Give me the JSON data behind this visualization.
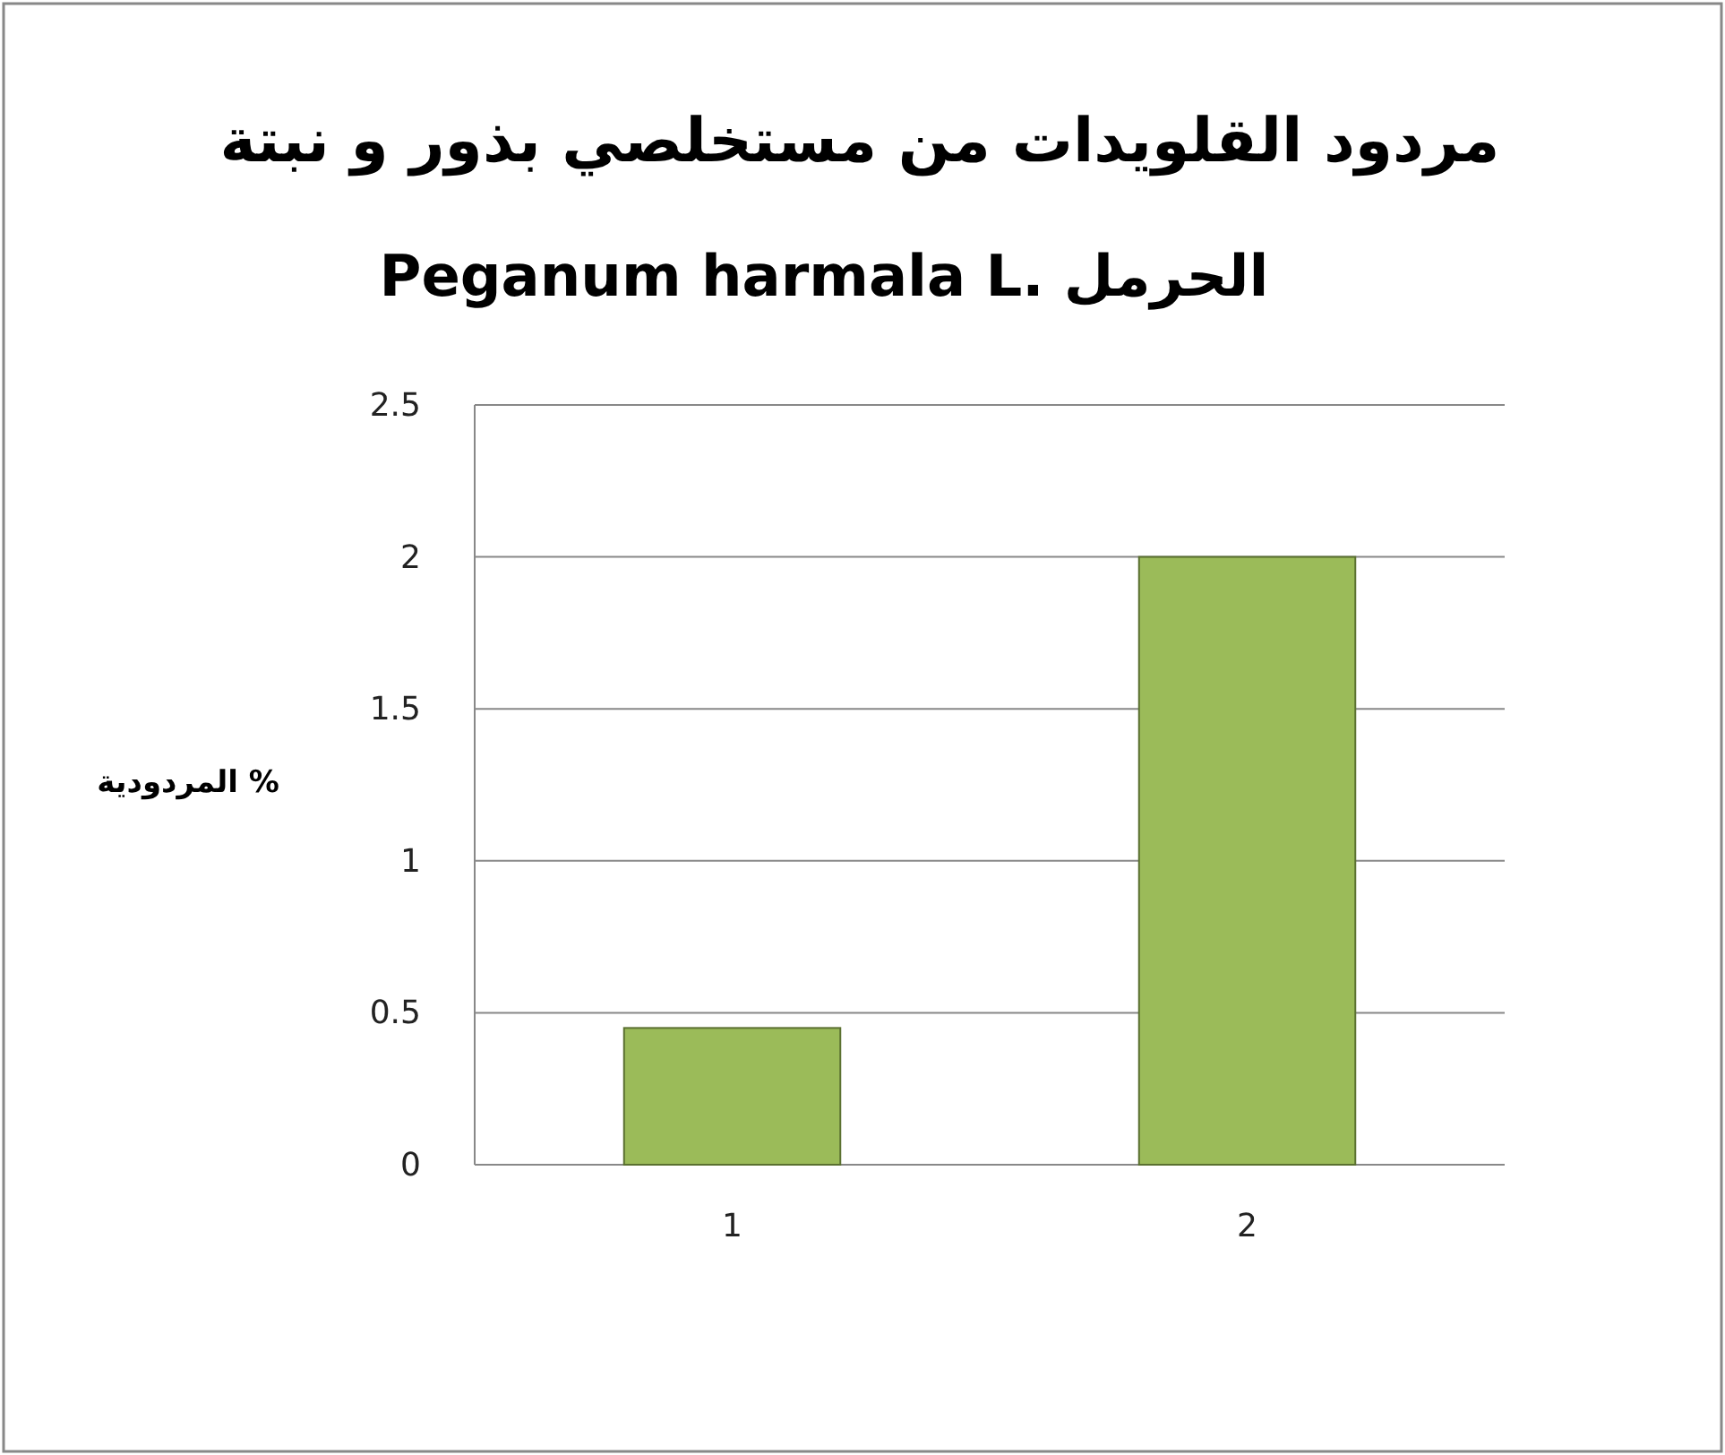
{
  "chart_data": {
    "type": "bar",
    "title": "مردود القلويدات من مستخلصي بذور و نبتة",
    "subtitle": "Peganum  harmala L.    الحرمل",
    "ylabel": "% المردودية",
    "categories": [
      "1",
      "2"
    ],
    "values": [
      0.45,
      2
    ],
    "color": "#9bbb59",
    "ylim": [
      0,
      2.5
    ],
    "yticks": [
      0,
      0.5,
      1,
      1.5,
      2,
      2.5
    ],
    "grid": "y"
  }
}
